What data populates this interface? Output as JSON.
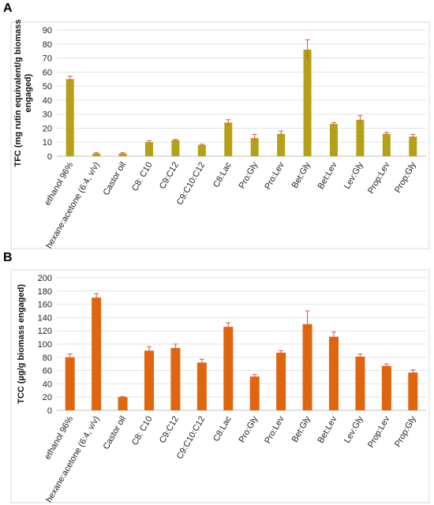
{
  "chart_data": [
    {
      "panel": "A",
      "type": "bar",
      "ylabel_lines": [
        "TFC (mg rutin equivalent/g biomass",
        "engaged)"
      ],
      "ylim": [
        0,
        90
      ],
      "ytick_step": 10,
      "bar_color": "#b5a01a",
      "error_color": "#d9534f",
      "grid": true,
      "categories": [
        "ethanol 96%",
        "hexane:acetone (6:4, v/v)",
        "Castor oil",
        "C8: C10",
        "C9:C12",
        "C9:C10:C12",
        "C8:Lac",
        "Pro:Gly",
        "Pro:Lev",
        "Bet:Gly",
        "Bet:Lev",
        "Lev:Gly",
        "Prop:Lev",
        "Prop:Gly"
      ],
      "values": [
        55,
        2,
        2,
        10,
        11.5,
        8,
        24,
        13,
        16,
        76,
        23,
        26,
        16,
        14
      ],
      "errors": [
        2,
        0.5,
        0.5,
        1,
        0.5,
        0.5,
        2,
        2.5,
        2,
        7,
        1,
        3,
        1,
        1.5
      ]
    },
    {
      "panel": "B",
      "type": "bar",
      "ylabel_lines": [
        "TCC (µg/g biomass engaged)"
      ],
      "ylim": [
        0,
        200
      ],
      "ytick_step": 20,
      "bar_color": "#e0650f",
      "error_color": "#d9534f",
      "grid": true,
      "categories": [
        "ethanol 96%",
        "hexane:acetone (6:4, v/v)",
        "Castor oil",
        "C8: C10",
        "C9:C12",
        "C9:C10:C12",
        "C8:Lac",
        "Pro:Gly",
        "Pro:Lev",
        "Bet:Gly",
        "Bet:Lev",
        "Lev:Gly",
        "Prop:Lev",
        "Prop:Gly"
      ],
      "values": [
        80,
        170,
        20,
        90,
        94,
        72,
        126,
        51,
        87,
        130,
        111,
        81,
        67,
        57
      ],
      "errors": [
        5,
        6,
        1,
        6,
        6,
        5,
        6,
        3,
        3,
        20,
        7,
        4,
        3,
        4
      ]
    }
  ],
  "panels": {
    "a_letter": "A",
    "b_letter": "B"
  }
}
